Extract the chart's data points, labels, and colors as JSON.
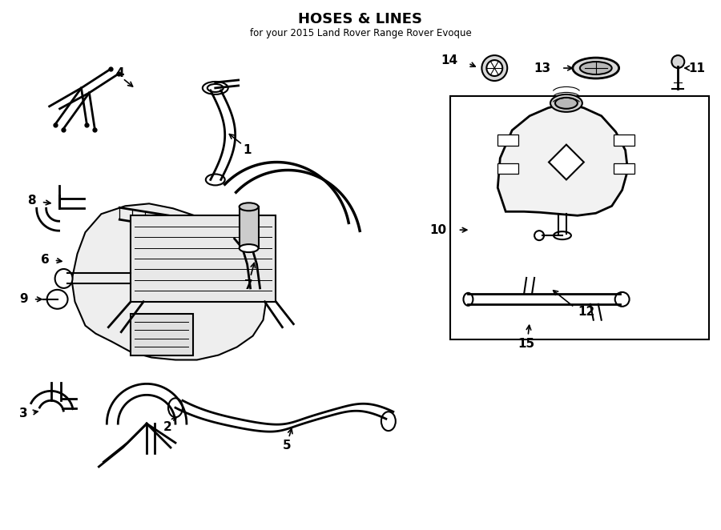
{
  "title": "HOSES & LINES",
  "subtitle": "for your 2015 Land Rover Range Rover Evoque",
  "bg_color": "#ffffff",
  "line_color": "#000000",
  "text_color": "#000000",
  "fig_width": 9.0,
  "fig_height": 6.62
}
